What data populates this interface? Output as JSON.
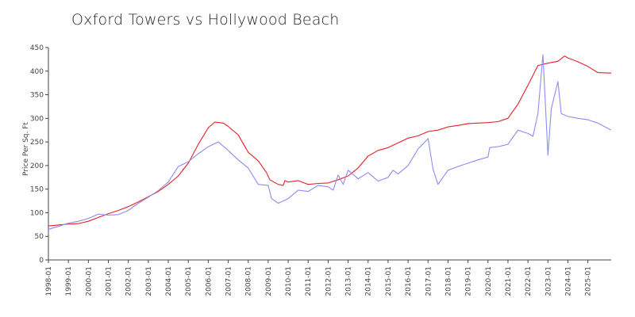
{
  "chart_data": {
    "type": "line",
    "title": "Oxford Towers vs Hollywood Beach",
    "xlabel": "",
    "ylabel": "Price Per Sq. Ft",
    "ylim": [
      0,
      450
    ],
    "yticks": [
      0,
      50,
      100,
      150,
      200,
      250,
      300,
      350,
      400,
      450
    ],
    "xlim": [
      "1998-01",
      "2026-03"
    ],
    "xticks": [
      "1998-01",
      "1999-01",
      "2000-01",
      "2001-01",
      "2002-01",
      "2003-01",
      "2004-01",
      "2005-01",
      "2006-01",
      "2007-01",
      "2008-01",
      "2009-01",
      "2010-01",
      "2011-01",
      "2012-01",
      "2013-01",
      "2014-01",
      "2015-01",
      "2016-01",
      "2017-01",
      "2018-01",
      "2019-01",
      "2020-01",
      "2021-01",
      "2022-01",
      "2023-01",
      "2024-01",
      "2025-01"
    ],
    "grid": false,
    "legend": "none",
    "series": [
      {
        "color": "#e8202a",
        "points": [
          [
            "1998-01",
            72
          ],
          [
            "1998-07",
            74
          ],
          [
            "1999-01",
            76
          ],
          [
            "1999-07",
            77
          ],
          [
            "2000-01",
            82
          ],
          [
            "2000-07",
            90
          ],
          [
            "2001-01",
            98
          ],
          [
            "2001-07",
            105
          ],
          [
            "2002-01",
            113
          ],
          [
            "2002-07",
            123
          ],
          [
            "2003-01",
            134
          ],
          [
            "2003-07",
            145
          ],
          [
            "2004-01",
            160
          ],
          [
            "2004-07",
            178
          ],
          [
            "2005-01",
            205
          ],
          [
            "2005-07",
            245
          ],
          [
            "2006-01",
            280
          ],
          [
            "2006-05",
            292
          ],
          [
            "2006-10",
            290
          ],
          [
            "2007-01",
            283
          ],
          [
            "2007-07",
            265
          ],
          [
            "2008-01",
            228
          ],
          [
            "2008-07",
            210
          ],
          [
            "2008-12",
            185
          ],
          [
            "2009-02",
            170
          ],
          [
            "2009-07",
            160
          ],
          [
            "2009-10",
            158
          ],
          [
            "2009-11",
            168
          ],
          [
            "2010-01",
            165
          ],
          [
            "2010-07",
            168
          ],
          [
            "2011-01",
            160
          ],
          [
            "2011-07",
            162
          ],
          [
            "2012-01",
            163
          ],
          [
            "2012-07",
            170
          ],
          [
            "2013-01",
            178
          ],
          [
            "2013-07",
            195
          ],
          [
            "2014-01",
            220
          ],
          [
            "2014-07",
            232
          ],
          [
            "2015-01",
            238
          ],
          [
            "2015-07",
            248
          ],
          [
            "2016-01",
            258
          ],
          [
            "2016-07",
            263
          ],
          [
            "2017-01",
            272
          ],
          [
            "2017-07",
            275
          ],
          [
            "2018-01",
            282
          ],
          [
            "2018-07",
            285
          ],
          [
            "2019-01",
            289
          ],
          [
            "2019-07",
            290
          ],
          [
            "2020-01",
            291
          ],
          [
            "2020-07",
            293
          ],
          [
            "2021-01",
            300
          ],
          [
            "2021-07",
            330
          ],
          [
            "2022-01",
            370
          ],
          [
            "2022-07",
            412
          ],
          [
            "2023-01",
            417
          ],
          [
            "2023-07",
            421
          ],
          [
            "2023-11",
            432
          ],
          [
            "2024-01",
            428
          ],
          [
            "2024-07",
            420
          ],
          [
            "2025-01",
            410
          ],
          [
            "2025-07",
            397
          ],
          [
            "2026-03",
            396
          ]
        ]
      },
      {
        "color": "#8c8cf2",
        "points": [
          [
            "1998-01",
            65
          ],
          [
            "1998-07",
            71
          ],
          [
            "1999-01",
            78
          ],
          [
            "1999-07",
            82
          ],
          [
            "2000-01",
            88
          ],
          [
            "2000-07",
            97
          ],
          [
            "2001-01",
            95
          ],
          [
            "2001-07",
            96
          ],
          [
            "2002-01",
            105
          ],
          [
            "2002-07",
            120
          ],
          [
            "2003-01",
            133
          ],
          [
            "2003-07",
            147
          ],
          [
            "2004-01",
            165
          ],
          [
            "2004-07",
            198
          ],
          [
            "2005-01",
            208
          ],
          [
            "2005-07",
            225
          ],
          [
            "2006-01",
            240
          ],
          [
            "2006-07",
            250
          ],
          [
            "2007-01",
            232
          ],
          [
            "2007-07",
            212
          ],
          [
            "2008-01",
            195
          ],
          [
            "2008-07",
            160
          ],
          [
            "2009-01",
            158
          ],
          [
            "2009-03",
            130
          ],
          [
            "2009-07",
            120
          ],
          [
            "2010-01",
            130
          ],
          [
            "2010-07",
            148
          ],
          [
            "2011-01",
            145
          ],
          [
            "2011-07",
            158
          ],
          [
            "2012-01",
            155
          ],
          [
            "2012-04",
            148
          ],
          [
            "2012-07",
            180
          ],
          [
            "2012-10",
            160
          ],
          [
            "2013-01",
            190
          ],
          [
            "2013-07",
            172
          ],
          [
            "2014-01",
            185
          ],
          [
            "2014-07",
            167
          ],
          [
            "2015-01",
            175
          ],
          [
            "2015-04",
            190
          ],
          [
            "2015-07",
            182
          ],
          [
            "2016-01",
            200
          ],
          [
            "2016-07",
            235
          ],
          [
            "2017-01",
            257
          ],
          [
            "2017-04",
            192
          ],
          [
            "2017-07",
            160
          ],
          [
            "2018-01",
            190
          ],
          [
            "2018-07",
            198
          ],
          [
            "2019-01",
            205
          ],
          [
            "2019-07",
            212
          ],
          [
            "2020-01",
            218
          ],
          [
            "2020-02",
            238
          ],
          [
            "2020-07",
            240
          ],
          [
            "2021-01",
            245
          ],
          [
            "2021-07",
            275
          ],
          [
            "2022-01",
            268
          ],
          [
            "2022-04",
            262
          ],
          [
            "2022-07",
            310
          ],
          [
            "2022-10",
            435
          ],
          [
            "2023-01",
            222
          ],
          [
            "2023-03",
            320
          ],
          [
            "2023-07",
            378
          ],
          [
            "2023-09",
            310
          ],
          [
            "2024-01",
            304
          ],
          [
            "2024-07",
            300
          ],
          [
            "2025-01",
            297
          ],
          [
            "2025-07",
            290
          ],
          [
            "2026-03",
            275
          ]
        ]
      }
    ]
  }
}
